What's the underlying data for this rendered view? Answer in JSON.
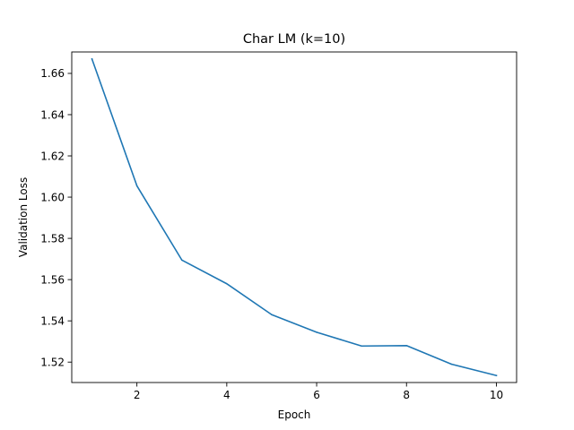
{
  "chart_data": {
    "type": "line",
    "title": "Char LM (k=10)",
    "xlabel": "Epoch",
    "ylabel": "Validation Loss",
    "x": [
      1,
      2,
      3,
      4,
      5,
      6,
      7,
      8,
      9,
      10
    ],
    "series": [
      {
        "color": "#1f77b4",
        "values": [
          1.667,
          1.6055,
          1.5695,
          1.558,
          1.543,
          1.5345,
          1.5278,
          1.528,
          1.519,
          1.5135
        ]
      }
    ],
    "xlim": [
      0.55,
      10.45
    ],
    "ylim": [
      1.5101,
      1.6704
    ],
    "x_ticks": [
      2,
      4,
      6,
      8,
      10
    ],
    "x_tick_labels": [
      "2",
      "4",
      "6",
      "8",
      "10"
    ],
    "y_ticks": [
      1.52,
      1.54,
      1.56,
      1.58,
      1.6,
      1.62,
      1.64,
      1.66
    ],
    "y_tick_labels": [
      "1.52",
      "1.54",
      "1.56",
      "1.58",
      "1.60",
      "1.62",
      "1.64",
      "1.66"
    ],
    "grid": false,
    "legend": "none"
  }
}
